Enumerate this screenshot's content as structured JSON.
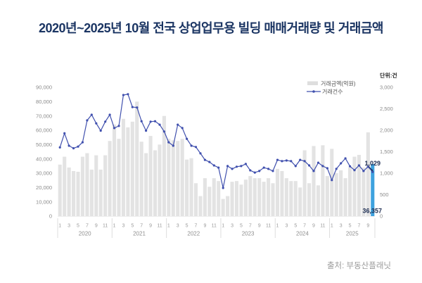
{
  "title": "2020년~2025년 10월 전국 상업업무용 빌딩 매매거래량 및 거래금액",
  "source": "출처: 부동산플래닛",
  "colors": {
    "title": "#1b3563",
    "bar": "#e3e3e3",
    "highlight_bar": "#3ea2de",
    "line": "#4050ae",
    "axis_text": "#8b8b8b",
    "annotation": "#1d2d52"
  },
  "chart_data": {
    "type": "bar+line combo",
    "x_groups": [
      {
        "year": "2020",
        "months": 12,
        "ticks": [
          "1",
          "3",
          "5",
          "7",
          "9",
          "11"
        ]
      },
      {
        "year": "2021",
        "months": 12,
        "ticks": [
          "1",
          "3",
          "5",
          "7",
          "9",
          "11"
        ]
      },
      {
        "year": "2022",
        "months": 12,
        "ticks": [
          "1",
          "3",
          "5",
          "7",
          "9",
          "11"
        ]
      },
      {
        "year": "2023",
        "months": 12,
        "ticks": [
          "1",
          "3",
          "5",
          "7",
          "9",
          "11"
        ]
      },
      {
        "year": "2024",
        "months": 12,
        "ticks": [
          "1",
          "3",
          "5",
          "7",
          "9",
          "11"
        ]
      },
      {
        "year": "2025",
        "months": 10,
        "ticks": [
          "1",
          "3",
          "5",
          "7",
          "9"
        ]
      }
    ],
    "left_axis": {
      "min": 0,
      "max": 90000,
      "step": 10000,
      "tick_labels": [
        "0",
        "10,000",
        "20,000",
        "30,000",
        "40,000",
        "50,000",
        "60,000",
        "70,000",
        "80,000",
        "90,000"
      ]
    },
    "right_axis": {
      "min": 0,
      "max": 3000,
      "step": 500,
      "tick_labels": [
        "0",
        "500",
        "1,000",
        "1,500",
        "2,000",
        "2,500",
        "3,000"
      ],
      "unit_label": "단위:건"
    },
    "series": [
      {
        "name": "거래금액(억원)",
        "type": "bar",
        "axis": "left",
        "color": "#e3e3e3",
        "highlight_index": 69,
        "highlight_color": "#3ea2de",
        "values": [
          36000,
          41500,
          34000,
          31500,
          31000,
          41500,
          44000,
          32500,
          42500,
          32500,
          42500,
          52500,
          64000,
          54000,
          68000,
          62000,
          66000,
          80000,
          52000,
          44000,
          56000,
          46000,
          50000,
          70000,
          54000,
          53000,
          52500,
          54000,
          39500,
          40500,
          23000,
          14000,
          26500,
          20500,
          26500,
          24500,
          12000,
          14000,
          24000,
          24500,
          22000,
          25500,
          28000,
          26500,
          26500,
          24000,
          26500,
          23000,
          33000,
          31500,
          26500,
          24500,
          24500,
          20000,
          46000,
          23000,
          49000,
          21500,
          49500,
          28000,
          47000,
          30000,
          32000,
          26500,
          34000,
          41500,
          42800,
          34000,
          58500,
          36357
        ]
      },
      {
        "name": "거래건수",
        "type": "line",
        "axis": "right",
        "color": "#4050ae",
        "values": [
          1600,
          1930,
          1640,
          1580,
          1620,
          1720,
          2230,
          2360,
          2160,
          1990,
          2200,
          2360,
          2050,
          2100,
          2820,
          2840,
          2540,
          2530,
          2210,
          1990,
          2200,
          2210,
          2130,
          1970,
          1720,
          1640,
          2130,
          2050,
          1800,
          1640,
          1610,
          1460,
          1310,
          1260,
          1180,
          1130,
          655,
          1165,
          1100,
          1150,
          1165,
          1215,
          1065,
          1015,
          1050,
          1130,
          1100,
          1050,
          1310,
          1280,
          1295,
          1280,
          1165,
          1310,
          1280,
          1180,
          1050,
          1245,
          1165,
          1115,
          840,
          1100,
          1230,
          1345,
          1160,
          1070,
          1180,
          1050,
          1150,
          1029
        ]
      }
    ],
    "annotations": {
      "transaction_count": "1,029",
      "transaction_amount": "36,357"
    }
  }
}
